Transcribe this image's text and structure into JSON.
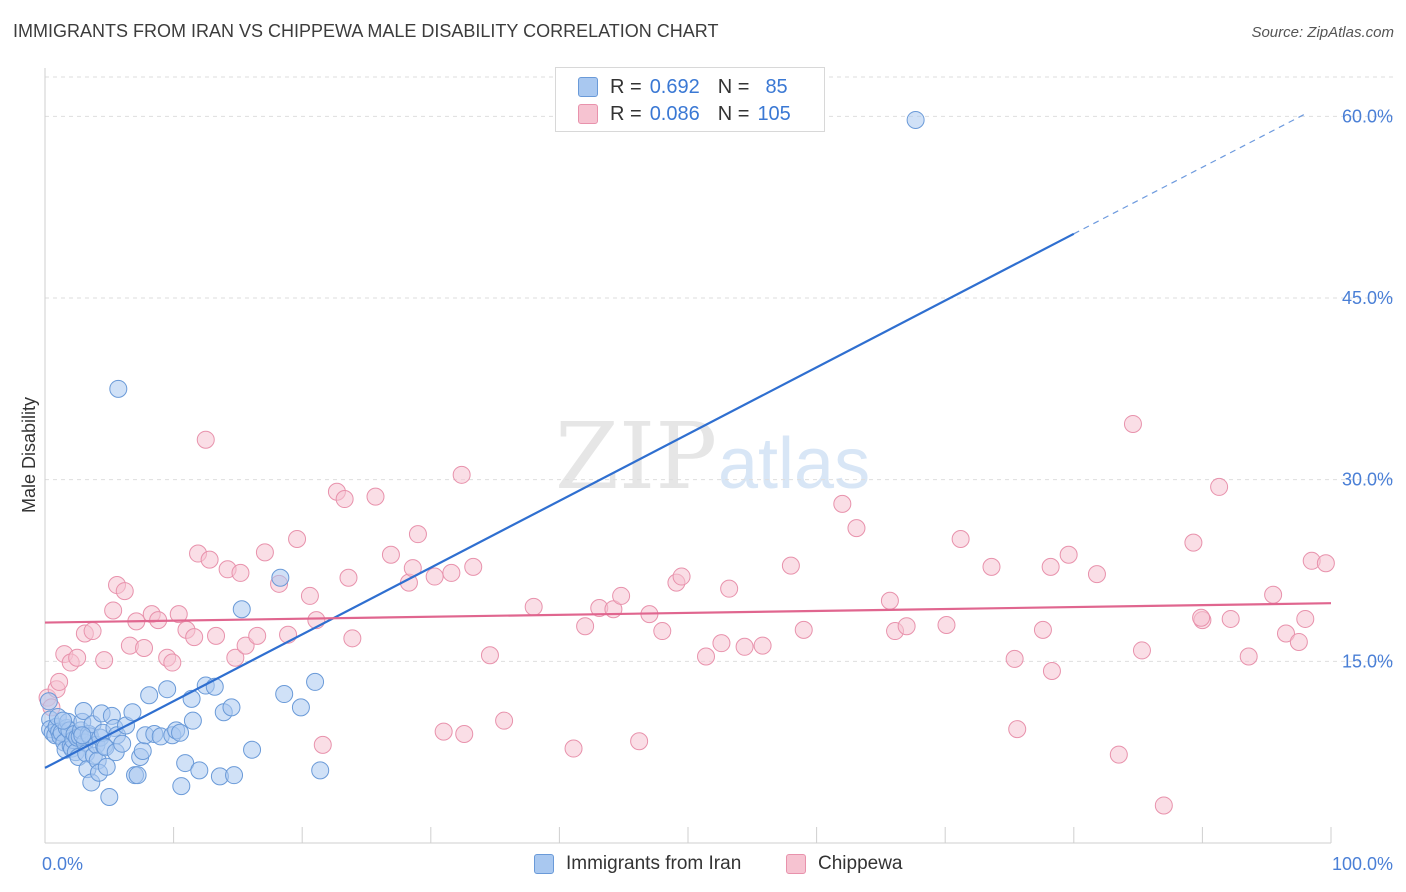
{
  "header": {
    "title": "IMMIGRANTS FROM IRAN VS CHIPPEWA MALE DISABILITY CORRELATION CHART",
    "source": "Source: ZipAtlas.com"
  },
  "watermark": {
    "part1": "ZIP",
    "part2": "atlas"
  },
  "legend": {
    "series1": {
      "r_label": "R =",
      "r_value": "0.692",
      "n_label": "N =",
      "n_value": "85"
    },
    "series2": {
      "r_label": "R =",
      "r_value": "0.086",
      "n_label": "N =",
      "n_value": "105"
    }
  },
  "colors": {
    "series1_fill": "#a9c8f0",
    "series1_stroke": "#6a9ad8",
    "series1_line": "#2f6fd0",
    "series2_fill": "#f6c3d1",
    "series2_stroke": "#e892ac",
    "series2_line": "#e0668f",
    "grid": "#dedede",
    "tick": "#4a7fd6"
  },
  "chart_data": {
    "type": "scatter",
    "title": "IMMIGRANTS FROM IRAN VS CHIPPEWA MALE DISABILITY CORRELATION CHART",
    "xlabel": "",
    "ylabel": "Male Disability",
    "xlim": [
      0,
      100
    ],
    "ylim": [
      0,
      63
    ],
    "x_tick_labels": [
      "0.0%",
      "100.0%"
    ],
    "y_ticks": [
      15,
      30,
      45,
      60
    ],
    "y_tick_labels": [
      "15.0%",
      "30.0%",
      "45.0%",
      "60.0%"
    ],
    "grid": true,
    "legend_position": "bottom",
    "series": [
      {
        "name": "Immigrants from Iran",
        "trend": {
          "x": [
            0,
            80
          ],
          "y": [
            6.2,
            50.3
          ],
          "dashed_to_x": 98,
          "dashed_to_y": 60.2
        },
        "points": [
          [
            0.3,
            11.7
          ],
          [
            0.4,
            10.2
          ],
          [
            0.4,
            9.4
          ],
          [
            0.6,
            9.1
          ],
          [
            0.8,
            8.9
          ],
          [
            0.9,
            9.6
          ],
          [
            1.0,
            10.4
          ],
          [
            1.1,
            9.2
          ],
          [
            1.2,
            8.8
          ],
          [
            1.3,
            9.1
          ],
          [
            1.5,
            8.3
          ],
          [
            1.6,
            7.7
          ],
          [
            1.7,
            9.5
          ],
          [
            1.8,
            10.0
          ],
          [
            1.9,
            9.3
          ],
          [
            2.0,
            8.0
          ],
          [
            2.1,
            7.8
          ],
          [
            2.2,
            8.5
          ],
          [
            2.3,
            9.0
          ],
          [
            2.4,
            7.5
          ],
          [
            2.5,
            8.7
          ],
          [
            2.6,
            7.1
          ],
          [
            2.7,
            8.8
          ],
          [
            2.8,
            9.3
          ],
          [
            2.9,
            10.0
          ],
          [
            3.0,
            10.9
          ],
          [
            3.1,
            8.3
          ],
          [
            3.2,
            7.4
          ],
          [
            3.3,
            6.1
          ],
          [
            3.4,
            9.0
          ],
          [
            3.5,
            8.8
          ],
          [
            3.6,
            5.0
          ],
          [
            3.7,
            9.8
          ],
          [
            3.8,
            7.2
          ],
          [
            4.0,
            8.1
          ],
          [
            4.1,
            6.8
          ],
          [
            4.2,
            5.8
          ],
          [
            4.3,
            8.7
          ],
          [
            4.4,
            10.7
          ],
          [
            4.5,
            9.1
          ],
          [
            4.6,
            8.0
          ],
          [
            4.7,
            7.9
          ],
          [
            4.8,
            6.3
          ],
          [
            5.0,
            3.8
          ],
          [
            5.2,
            10.5
          ],
          [
            5.4,
            9.5
          ],
          [
            5.5,
            7.5
          ],
          [
            5.6,
            8.9
          ],
          [
            5.7,
            37.5
          ],
          [
            6.0,
            8.2
          ],
          [
            6.3,
            9.7
          ],
          [
            6.8,
            10.8
          ],
          [
            7.0,
            5.6
          ],
          [
            7.2,
            5.6
          ],
          [
            7.4,
            7.1
          ],
          [
            7.6,
            7.6
          ],
          [
            7.8,
            8.9
          ],
          [
            8.1,
            12.2
          ],
          [
            8.5,
            9.0
          ],
          [
            9.0,
            8.8
          ],
          [
            9.5,
            12.7
          ],
          [
            9.9,
            8.9
          ],
          [
            10.2,
            9.3
          ],
          [
            10.5,
            9.1
          ],
          [
            10.6,
            4.7
          ],
          [
            10.9,
            6.6
          ],
          [
            11.4,
            11.9
          ],
          [
            11.5,
            10.1
          ],
          [
            12.0,
            6.0
          ],
          [
            12.5,
            13.0
          ],
          [
            13.2,
            12.9
          ],
          [
            13.6,
            5.5
          ],
          [
            13.9,
            10.8
          ],
          [
            14.5,
            11.2
          ],
          [
            14.7,
            5.6
          ],
          [
            15.3,
            19.3
          ],
          [
            16.1,
            7.7
          ],
          [
            18.3,
            21.9
          ],
          [
            18.6,
            12.3
          ],
          [
            19.9,
            11.2
          ],
          [
            21.0,
            13.3
          ],
          [
            21.4,
            6.0
          ],
          [
            67.7,
            59.7
          ],
          [
            1.4,
            10.1
          ],
          [
            2.9,
            8.9
          ]
        ]
      },
      {
        "name": "Chippewa",
        "trend": {
          "x": [
            0,
            100
          ],
          "y": [
            18.2,
            19.8
          ]
        },
        "points": [
          [
            0.2,
            12.0
          ],
          [
            0.5,
            11.2
          ],
          [
            0.9,
            12.7
          ],
          [
            1.1,
            13.3
          ],
          [
            1.5,
            15.6
          ],
          [
            2.0,
            14.9
          ],
          [
            2.5,
            15.3
          ],
          [
            3.1,
            17.3
          ],
          [
            3.7,
            17.5
          ],
          [
            4.6,
            15.1
          ],
          [
            5.3,
            19.2
          ],
          [
            5.6,
            21.3
          ],
          [
            6.2,
            20.8
          ],
          [
            6.6,
            16.3
          ],
          [
            7.1,
            18.3
          ],
          [
            7.7,
            16.1
          ],
          [
            8.3,
            18.9
          ],
          [
            8.8,
            18.4
          ],
          [
            9.5,
            15.3
          ],
          [
            9.9,
            14.9
          ],
          [
            10.4,
            18.9
          ],
          [
            11.0,
            17.6
          ],
          [
            11.6,
            17.0
          ],
          [
            11.9,
            23.9
          ],
          [
            12.5,
            33.3
          ],
          [
            12.8,
            23.4
          ],
          [
            13.3,
            17.1
          ],
          [
            14.2,
            22.6
          ],
          [
            14.8,
            15.3
          ],
          [
            15.2,
            22.3
          ],
          [
            15.6,
            16.3
          ],
          [
            16.5,
            17.1
          ],
          [
            17.1,
            24.0
          ],
          [
            18.2,
            21.4
          ],
          [
            18.9,
            17.2
          ],
          [
            19.6,
            25.1
          ],
          [
            20.6,
            20.4
          ],
          [
            21.1,
            18.4
          ],
          [
            21.6,
            8.1
          ],
          [
            22.7,
            29.0
          ],
          [
            23.3,
            28.4
          ],
          [
            23.6,
            21.9
          ],
          [
            23.9,
            16.9
          ],
          [
            25.7,
            28.6
          ],
          [
            26.9,
            23.8
          ],
          [
            28.3,
            21.5
          ],
          [
            28.6,
            22.7
          ],
          [
            29.0,
            25.5
          ],
          [
            30.3,
            22.0
          ],
          [
            31.0,
            9.2
          ],
          [
            31.6,
            22.3
          ],
          [
            32.4,
            30.4
          ],
          [
            32.6,
            9.0
          ],
          [
            33.3,
            22.8
          ],
          [
            34.6,
            15.5
          ],
          [
            35.7,
            10.1
          ],
          [
            38.0,
            19.5
          ],
          [
            41.1,
            7.8
          ],
          [
            42.0,
            17.9
          ],
          [
            43.1,
            19.4
          ],
          [
            44.2,
            19.3
          ],
          [
            44.8,
            20.4
          ],
          [
            46.2,
            8.4
          ],
          [
            47.0,
            18.9
          ],
          [
            48.0,
            17.5
          ],
          [
            49.1,
            21.5
          ],
          [
            49.5,
            22.0
          ],
          [
            51.4,
            15.4
          ],
          [
            52.6,
            16.5
          ],
          [
            53.2,
            21.0
          ],
          [
            54.4,
            16.2
          ],
          [
            55.8,
            16.3
          ],
          [
            58.0,
            22.9
          ],
          [
            59.0,
            17.6
          ],
          [
            62.0,
            28.0
          ],
          [
            63.1,
            26.0
          ],
          [
            65.7,
            20.0
          ],
          [
            66.1,
            17.5
          ],
          [
            67.0,
            17.9
          ],
          [
            70.1,
            18.0
          ],
          [
            71.2,
            25.1
          ],
          [
            73.6,
            22.8
          ],
          [
            75.4,
            15.2
          ],
          [
            75.6,
            9.4
          ],
          [
            77.6,
            17.6
          ],
          [
            78.2,
            22.8
          ],
          [
            78.3,
            14.2
          ],
          [
            79.6,
            23.8
          ],
          [
            81.8,
            22.2
          ],
          [
            83.5,
            7.3
          ],
          [
            84.6,
            34.6
          ],
          [
            85.3,
            15.9
          ],
          [
            87.0,
            3.1
          ],
          [
            89.3,
            24.8
          ],
          [
            90.0,
            18.4
          ],
          [
            91.3,
            29.4
          ],
          [
            92.2,
            18.5
          ],
          [
            93.6,
            15.4
          ],
          [
            95.5,
            20.5
          ],
          [
            96.5,
            17.3
          ],
          [
            97.5,
            16.6
          ],
          [
            98.0,
            18.5
          ],
          [
            98.5,
            23.3
          ],
          [
            99.6,
            23.1
          ],
          [
            89.9,
            18.6
          ]
        ]
      }
    ]
  }
}
